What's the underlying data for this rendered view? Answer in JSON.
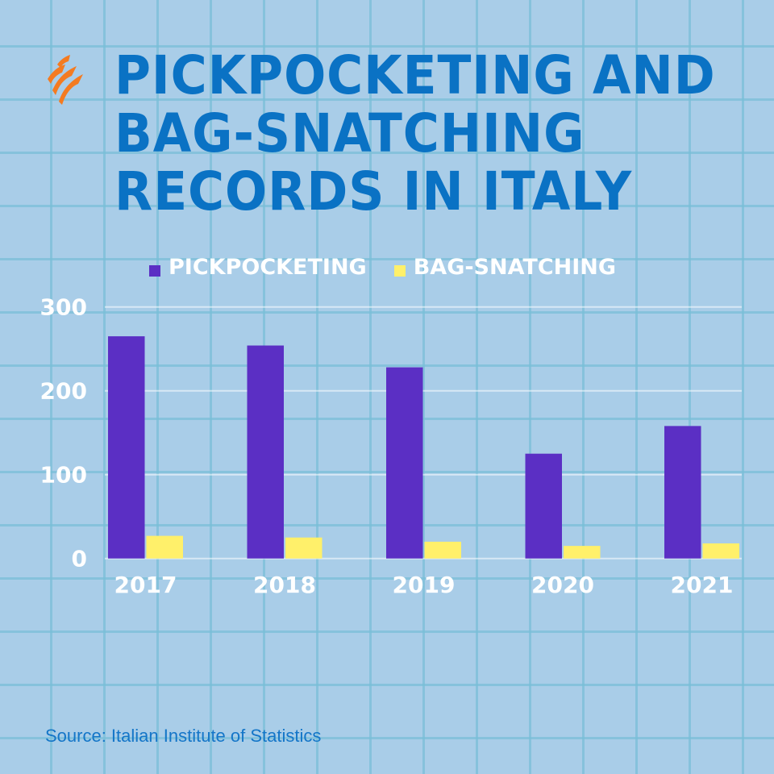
{
  "title": "PICKPOCKETING AND BAG-SNATCHING RECORDS IN ITALY",
  "logo": "sbs-logo",
  "source": "Source: Italian Institute of Statistics",
  "colors": {
    "background": "#a9cde8",
    "title": "#0a72c4",
    "pickpocketing": "#5b2fc4",
    "bag_snatching": "#fff06a"
  },
  "chart_data": {
    "type": "bar",
    "title": "PICKPOCKETING AND BAG-SNATCHING RECORDS IN ITALY",
    "categories": [
      "2017",
      "2018",
      "2019",
      "2020",
      "2021"
    ],
    "series": [
      {
        "name": "PICKPOCKETING",
        "values": [
          265,
          254,
          228,
          125,
          158
        ]
      },
      {
        "name": "BAG-SNATCHING",
        "values": [
          27,
          25,
          20,
          15,
          18
        ]
      }
    ],
    "yticks": [
      "0",
      "100",
      "200",
      "300"
    ],
    "ylim": [
      0,
      300
    ],
    "grid": true,
    "legend": "top"
  }
}
